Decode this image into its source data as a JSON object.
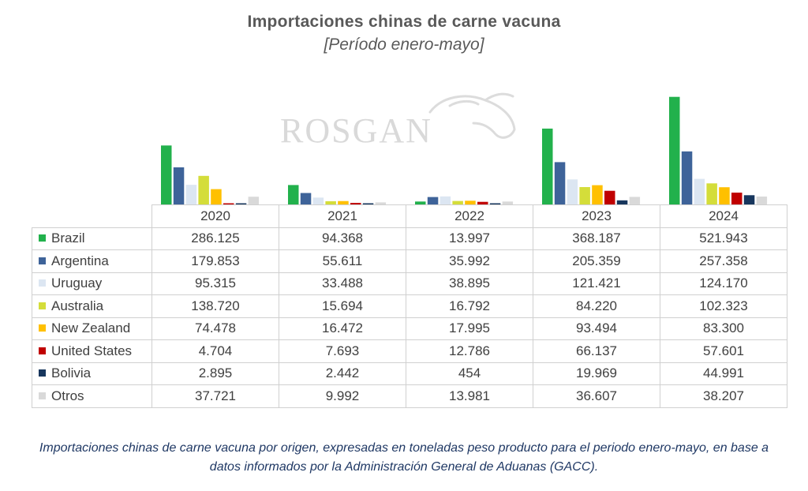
{
  "chart_data": {
    "type": "bar",
    "title": "Importaciones chinas de carne vacuna",
    "subtitle": "[Período enero-mayo]",
    "categories": [
      "2020",
      "2021",
      "2022",
      "2023",
      "2024"
    ],
    "series": [
      {
        "name": "Brazil",
        "color": "#22b14c",
        "values": [
          286125,
          94368,
          13997,
          368187,
          521943
        ],
        "labels": [
          "286.125",
          "94.368",
          "13.997",
          "368.187",
          "521.943"
        ]
      },
      {
        "name": "Argentina",
        "color": "#3e6399",
        "values": [
          179853,
          55611,
          35992,
          205359,
          257358
        ],
        "labels": [
          "179.853",
          "55.611",
          "35.992",
          "205.359",
          "257.358"
        ]
      },
      {
        "name": "Uruguay",
        "color": "#dce6f2",
        "values": [
          95315,
          33488,
          38895,
          121421,
          124170
        ],
        "labels": [
          "95.315",
          "33.488",
          "38.895",
          "121.421",
          "124.170"
        ]
      },
      {
        "name": "Australia",
        "color": "#d4dd3a",
        "values": [
          138720,
          15694,
          16792,
          84220,
          102323
        ],
        "labels": [
          "138.720",
          "15.694",
          "16.792",
          "84.220",
          "102.323"
        ]
      },
      {
        "name": "New Zealand",
        "color": "#ffc000",
        "values": [
          74478,
          16472,
          17995,
          93494,
          83300
        ],
        "labels": [
          "74.478",
          "16.472",
          "17.995",
          "93.494",
          "83.300"
        ]
      },
      {
        "name": "United States",
        "color": "#c00000",
        "values": [
          4704,
          7693,
          12786,
          66137,
          57601
        ],
        "labels": [
          "4.704",
          "7.693",
          "12.786",
          "66.137",
          "57.601"
        ]
      },
      {
        "name": "Bolivia",
        "color": "#17365d",
        "values": [
          2895,
          2442,
          454,
          19969,
          44991
        ],
        "labels": [
          "2.895",
          "2.442",
          "454",
          "19.969",
          "44.991"
        ]
      },
      {
        "name": "Otros",
        "color": "#d9d9d9",
        "values": [
          37721,
          9992,
          13981,
          36607,
          38207
        ],
        "labels": [
          "37.721",
          "9.992",
          "13.981",
          "36.607",
          "38.207"
        ]
      }
    ],
    "ylim": [
      0,
      540000
    ],
    "legend": "table-left",
    "grid": false
  },
  "watermark": "ROSGAN",
  "caption_line1": "Importaciones chinas de carne vacuna por origen, expresadas en toneladas peso producto para el periodo enero-mayo, en base a",
  "caption_line2": "datos informados por la Administración General de Aduanas (GACC)."
}
